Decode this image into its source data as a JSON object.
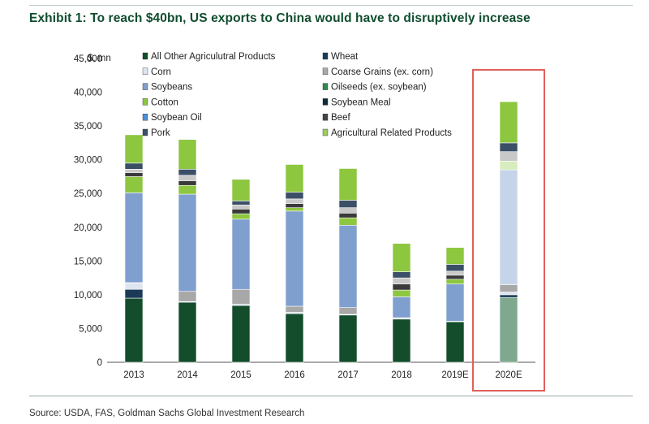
{
  "title": "Exhibit 1: To reach $40bn, US exports to China would have to disruptively increase",
  "source": "Source: USDA, FAS, Goldman Sachs Global Investment Research",
  "chart_data": {
    "type": "bar",
    "stacked": true,
    "unit_label": "$, mn",
    "categories": [
      "2013",
      "2014",
      "2015",
      "2016",
      "2017",
      "2018",
      "2019E",
      "2020E"
    ],
    "ylim": [
      0,
      45000
    ],
    "yticks": [
      0,
      5000,
      10000,
      15000,
      20000,
      25000,
      30000,
      35000,
      40000,
      45000
    ],
    "ytick_labels": [
      "0",
      "5,000",
      "10,000",
      "15,000",
      "20,000",
      "25,000",
      "30,000",
      "35,000",
      "40,000",
      "45,000"
    ],
    "highlight": {
      "category": "2020E",
      "color": "#e0605a"
    },
    "legend_position": "top",
    "series": [
      {
        "name": "All Other Agriculutral Products",
        "color": "#134d2b",
        "values": [
          9500,
          8900,
          8400,
          7200,
          7000,
          6400,
          6000,
          9600
        ]
      },
      {
        "name": "Wheat",
        "color": "#1b3a57",
        "values": [
          1300,
          0,
          100,
          0,
          0,
          0,
          0,
          400
        ]
      },
      {
        "name": "Corn",
        "color": "#dde6ef",
        "values": [
          900,
          100,
          100,
          200,
          100,
          100,
          100,
          400
        ]
      },
      {
        "name": "Coarse Grains (ex. corn)",
        "color": "#a8a8a8",
        "values": [
          100,
          1500,
          2200,
          900,
          1000,
          100,
          0,
          1100
        ]
      },
      {
        "name": "Soybeans",
        "color": "#7f9fcf",
        "values": [
          13300,
          14400,
          10400,
          14100,
          12200,
          3100,
          5500,
          17000
        ]
      },
      {
        "name": "Oilseeds (ex. soybean)",
        "color": "#2c8a4d",
        "values": [
          0,
          0,
          0,
          0,
          0,
          0,
          0,
          0
        ]
      },
      {
        "name": "Cotton",
        "color": "#8dc63f",
        "values": [
          2400,
          1300,
          800,
          500,
          1100,
          1000,
          700,
          1300
        ]
      },
      {
        "name": "Soybean Meal",
        "color": "#0e2a3d",
        "values": [
          0,
          0,
          0,
          0,
          0,
          0,
          0,
          0
        ]
      },
      {
        "name": "Soybean Oil",
        "color": "#4a8fd4",
        "values": [
          0,
          0,
          0,
          0,
          0,
          0,
          0,
          0
        ]
      },
      {
        "name": "Beef",
        "color": "#444444",
        "values": [
          0,
          0,
          0,
          0,
          0,
          0,
          0,
          0
        ]
      },
      {
        "name": "Pork",
        "color": "#3b4f66",
        "values": [
          0,
          0,
          0,
          0,
          0,
          0,
          0,
          0
        ]
      },
      {
        "name": "Agricultural Related Products",
        "color": "#9acd5a",
        "values": [
          0,
          0,
          0,
          0,
          0,
          0,
          0,
          0
        ]
      },
      {
        "name": "",
        "color": "#3a3a3a",
        "values": [
          600,
          700,
          700,
          600,
          700,
          900,
          600,
          0
        ]
      },
      {
        "name": "",
        "color": "#c8c8c8",
        "values": [
          500,
          800,
          600,
          700,
          800,
          900,
          600,
          1400
        ]
      },
      {
        "name": "",
        "color": "#3b4f66",
        "values": [
          900,
          900,
          600,
          1000,
          1100,
          900,
          1000,
          1300
        ]
      },
      {
        "name": "",
        "color": "#8dc63f",
        "values": [
          4200,
          4400,
          3200,
          4100,
          4700,
          4200,
          2500,
          6100
        ]
      }
    ],
    "style_2020E_overrides": {
      "All Other Agriculutral Products": "#7fa98f",
      "Soybeans": "#c6d4ea",
      "Cotton": "#d8ecbd"
    }
  }
}
